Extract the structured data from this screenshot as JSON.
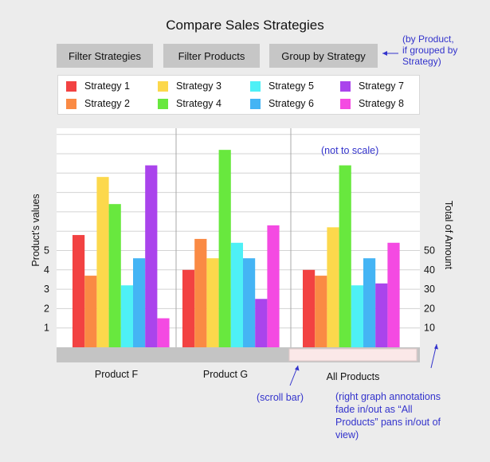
{
  "title": "Compare Sales Strategies",
  "buttons": [
    {
      "label": "Filter Strategies"
    },
    {
      "label": "Filter Products"
    },
    {
      "label": "Group by Strategy"
    }
  ],
  "notes": {
    "group_note": [
      "(by Product,",
      "if grouped by",
      "Strategy)"
    ],
    "not_to_scale": "(not to scale)",
    "scroll_bar": "(scroll bar)",
    "right_note": [
      "(right graph annotations",
      "fade in/out as “All",
      "Products” pans in/out of",
      "view)"
    ]
  },
  "chart_data": {
    "type": "bar",
    "categories": [
      "Product F",
      "Product G",
      "All Products"
    ],
    "series": [
      {
        "name": "Strategy 1",
        "color": "#f24242",
        "values": [
          5.8,
          4.0,
          40
        ]
      },
      {
        "name": "Strategy 2",
        "color": "#fa8a44",
        "values": [
          3.7,
          5.6,
          37
        ]
      },
      {
        "name": "Strategy 3",
        "color": "#fcd84c",
        "values": [
          8.8,
          4.6,
          62
        ]
      },
      {
        "name": "Strategy 4",
        "color": "#68e83e",
        "values": [
          7.4,
          10.2,
          94
        ]
      },
      {
        "name": "Strategy 5",
        "color": "#4ef0f6",
        "values": [
          3.2,
          5.4,
          32
        ]
      },
      {
        "name": "Strategy 6",
        "color": "#44b4f4",
        "values": [
          4.6,
          4.6,
          46
        ]
      },
      {
        "name": "Strategy 7",
        "color": "#aa44ec",
        "values": [
          9.4,
          2.5,
          33
        ]
      },
      {
        "name": "Strategy 8",
        "color": "#f44ae2",
        "values": [
          1.5,
          6.3,
          54
        ]
      }
    ],
    "left_axis": {
      "label": "Product's values",
      "ticks": [
        "1",
        "2",
        "3",
        "4",
        "5"
      ],
      "range": [
        0,
        11.4
      ]
    },
    "right_axis": {
      "label": "Total of Amount",
      "ticks": [
        "10",
        "20",
        "30",
        "40",
        "50"
      ],
      "range": [
        0,
        114
      ]
    }
  }
}
